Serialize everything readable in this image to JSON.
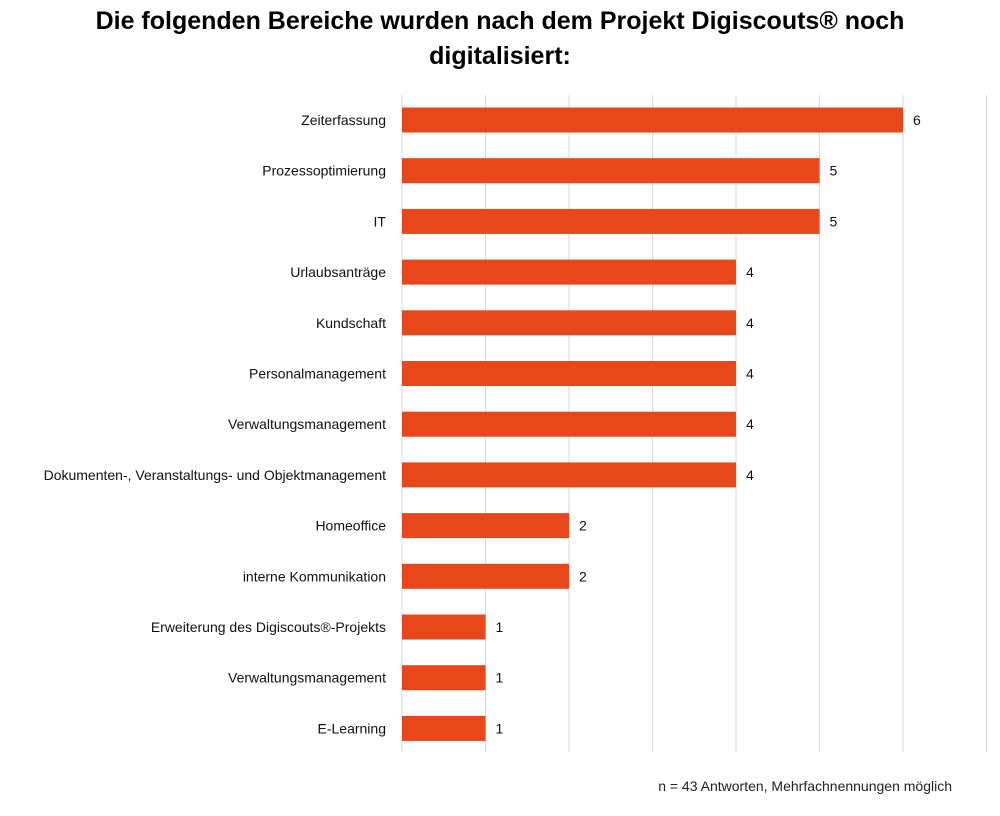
{
  "chart_data": {
    "type": "bar",
    "orientation": "horizontal",
    "title": "Die folgenden Bereiche wurden nach dem Projekt Digiscouts® noch\ndigitalisiert:",
    "categories": [
      "Zeiterfassung",
      "Prozessoptimierung",
      "IT",
      "Urlaubsanträge",
      "Kundschaft",
      "Personalmanagement",
      "Verwaltungsmanagement",
      "Dokumenten-, Veranstaltungs- und Objektmanagement",
      "Homeoffice",
      "interne Kommunikation",
      "Erweiterung des Digiscouts®-Projekts",
      "Verwaltungsmanagement",
      "E-Learning"
    ],
    "values": [
      6,
      5,
      5,
      4,
      4,
      4,
      4,
      4,
      2,
      2,
      1,
      1,
      1
    ],
    "data_labels": [
      "6",
      "5",
      "5",
      "4",
      "4",
      "4",
      "4",
      "4",
      "2",
      "2",
      "1",
      "1",
      "1"
    ],
    "xlim": [
      0,
      7
    ],
    "grid": true,
    "bar_color": "#E8461B",
    "gridline_color": "#D9D9D9",
    "note": "n = 43 Antworten, Mehrfachnennungen möglich"
  }
}
